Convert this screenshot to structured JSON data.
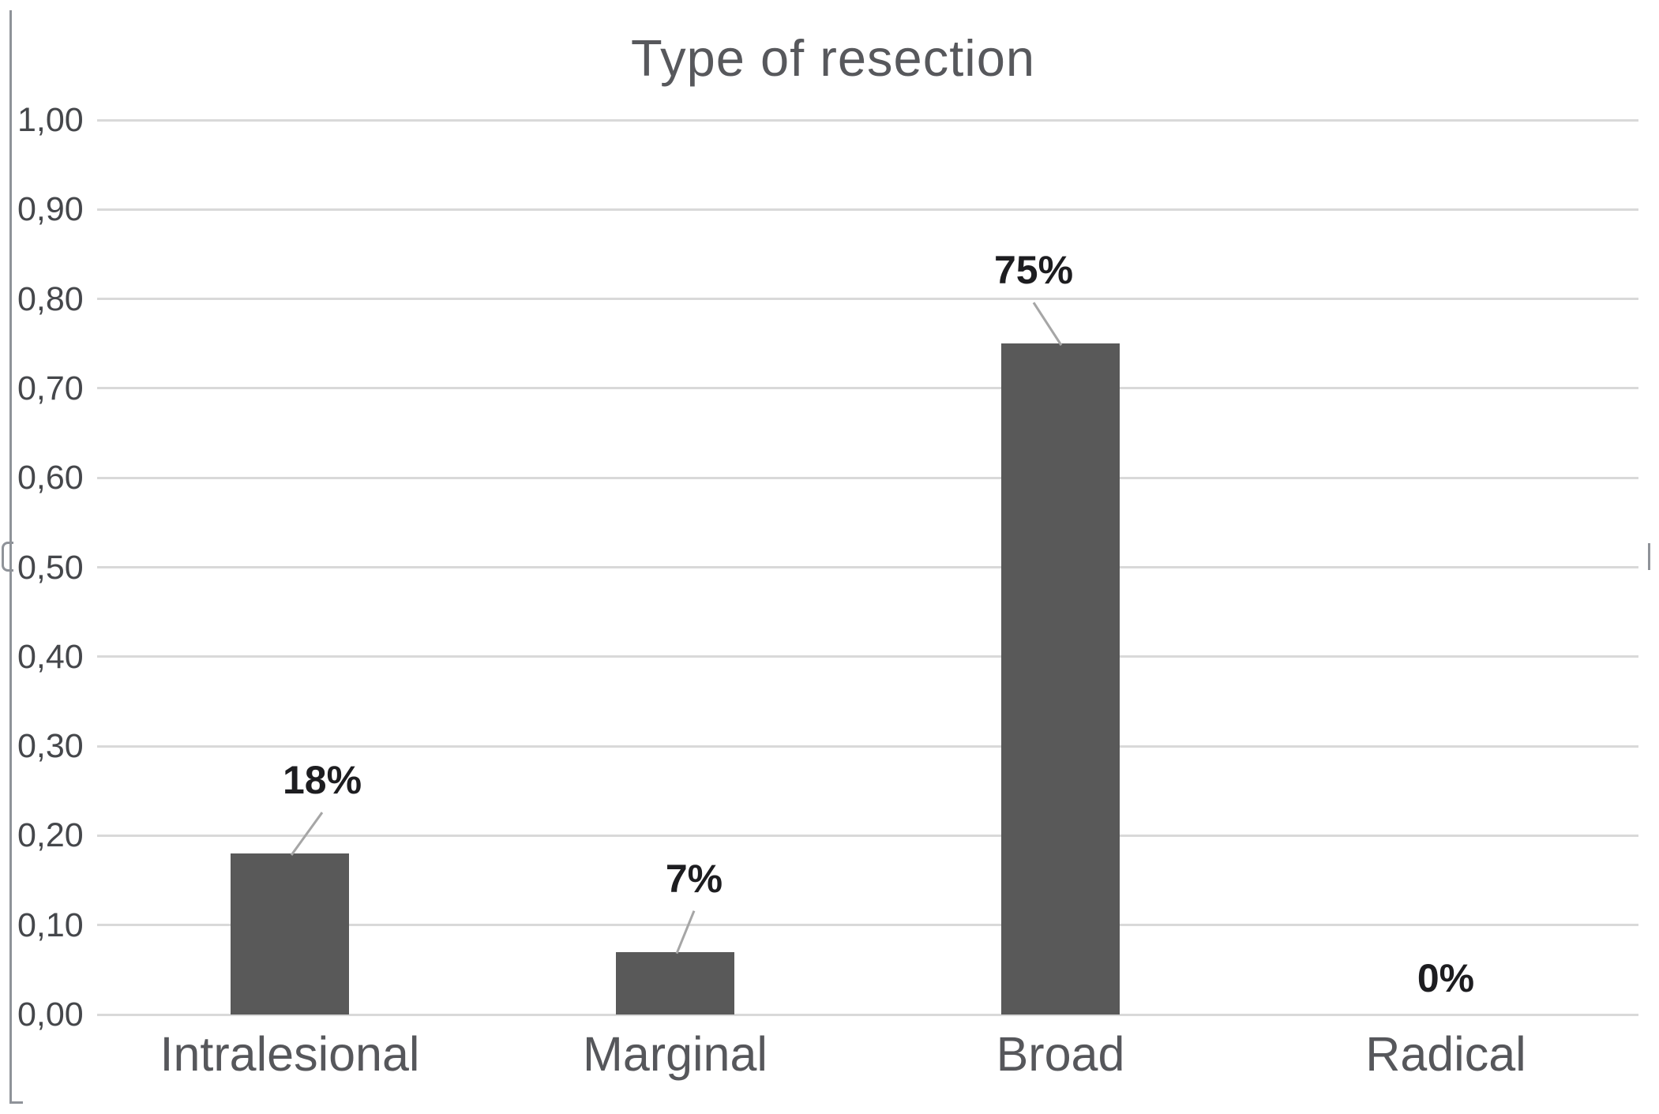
{
  "chart_data": {
    "type": "bar",
    "title": "Type of resection",
    "categories": [
      "Intralesional",
      "Marginal",
      "Broad",
      "Radical"
    ],
    "values": [
      0.18,
      0.07,
      0.75,
      0.0
    ],
    "data_labels": [
      "18%",
      "7%",
      "75%",
      "0%"
    ],
    "y_tick_labels": [
      "1,00",
      "0,90",
      "0,80",
      "0,70",
      "0,60",
      "0,50",
      "0,40",
      "0,30",
      "0,20",
      "0,10",
      "0,00"
    ],
    "y_tick_values": [
      1.0,
      0.9,
      0.8,
      0.7,
      0.6,
      0.5,
      0.4,
      0.3,
      0.2,
      0.1,
      0.0
    ],
    "ylim": [
      0,
      1
    ],
    "xlabel": "",
    "ylabel": "",
    "grid": true,
    "legend": "none",
    "decimal_separator": ",",
    "bar_color": "#595959",
    "gridline_color": "#d9d9d9",
    "axis_line_color": "#8f9399",
    "data_label_color": "#1d1d20",
    "axis_text_color": "#45474b",
    "category_text_color": "#56575b",
    "leader_line_color": "#a6a6a6",
    "data_label_offsets_x": [
      41,
      24,
      -34,
      0
    ],
    "has_leader_line": [
      true,
      true,
      true,
      false
    ]
  }
}
